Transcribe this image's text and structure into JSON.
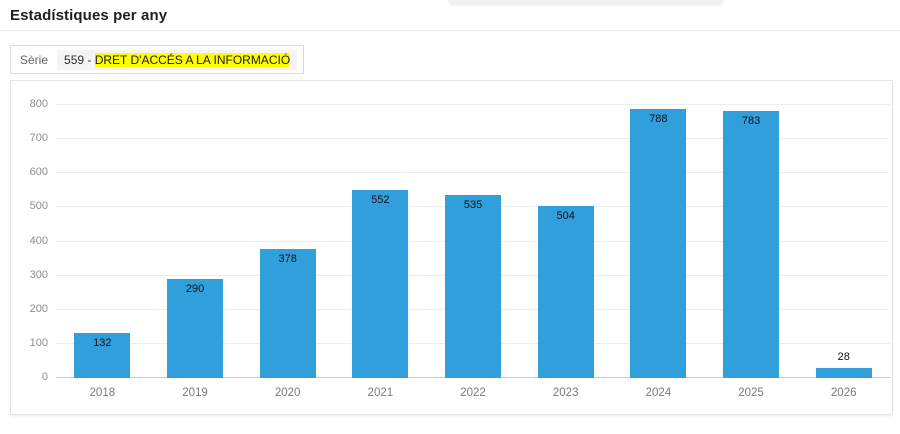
{
  "header": {
    "title": "Estadístiques per any"
  },
  "series": {
    "label": "Sèrie",
    "code_prefix": "559 - ",
    "highlighted_text": "DRET D'ACCÉS A LA INFORMACIÓ",
    "highlight_color": "#ffff00"
  },
  "colors": {
    "bar": "#309fdb",
    "gridline": "#ededed",
    "axis_line": "#c9c9c9",
    "tick_text": "#8d8d8d",
    "value_text": "#101018"
  },
  "chart_data": {
    "type": "bar",
    "categories": [
      "2018",
      "2019",
      "2020",
      "2021",
      "2022",
      "2023",
      "2024",
      "2025",
      "2026"
    ],
    "values": [
      132,
      290,
      378,
      552,
      535,
      504,
      788,
      783,
      28
    ],
    "title": "",
    "xlabel": "",
    "ylabel": "",
    "ylim": [
      0,
      800
    ],
    "ytick_step": 100,
    "grid": true,
    "legend": false,
    "bar_label_position": "inside-top (above bar when bar too short)"
  }
}
